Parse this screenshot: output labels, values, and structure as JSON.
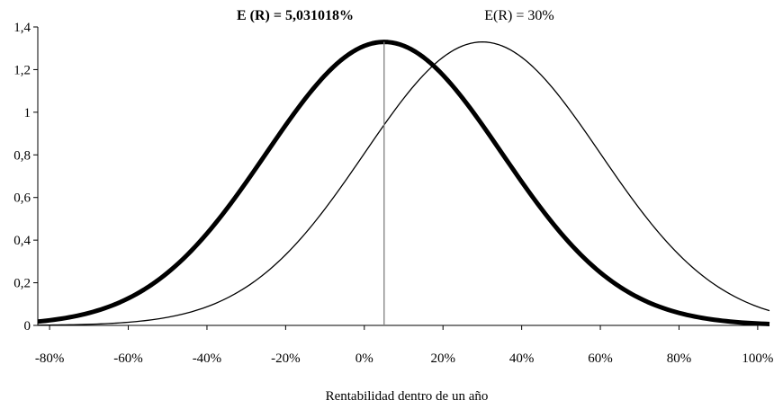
{
  "chart_data": {
    "type": "line",
    "xlabel": "Rentabilidad dentro de un año",
    "ylabel": "",
    "xlim": [
      -83,
      103
    ],
    "ylim": [
      0,
      1.4
    ],
    "grid": false,
    "x_ticks": [
      {
        "value": -80,
        "label": "-80%"
      },
      {
        "value": -60,
        "label": "-60%"
      },
      {
        "value": -40,
        "label": "-40%"
      },
      {
        "value": -20,
        "label": "-20%"
      },
      {
        "value": 0,
        "label": "0%"
      },
      {
        "value": 20,
        "label": "20%"
      },
      {
        "value": 40,
        "label": "40%"
      },
      {
        "value": 60,
        "label": "60%"
      },
      {
        "value": 80,
        "label": "80%"
      },
      {
        "value": 100,
        "label": "100%"
      }
    ],
    "y_ticks": [
      {
        "value": 0,
        "label": "0"
      },
      {
        "value": 0.2,
        "label": "0,2"
      },
      {
        "value": 0.4,
        "label": "0,4"
      },
      {
        "value": 0.6,
        "label": "0,6"
      },
      {
        "value": 0.8,
        "label": "0,8"
      },
      {
        "value": 1.0,
        "label": "1"
      },
      {
        "value": 1.2,
        "label": "1,2"
      },
      {
        "value": 1.4,
        "label": "1,4"
      }
    ],
    "series": [
      {
        "mean": 5.031018,
        "std": 30,
        "x_range": [
          -83,
          103
        ],
        "color": "#000000",
        "thick": true,
        "values_at": {
          "-80": 0.0266,
          "-60": 0.1346,
          "-40": 0.4222,
          "-20": 0.9616,
          "0": 1.3131,
          "20": 1.1683,
          "40": 0.6206,
          "60": 0.2485,
          "80": 0.0598,
          "100": 0.0087
        }
      },
      {
        "mean": 30,
        "std": 30,
        "x_range": [
          -83,
          103
        ],
        "color": "#000000",
        "thick": false,
        "values_at": {
          "-80": 0.0017,
          "-60": 0.0147,
          "-40": 0.0731,
          "-20": 0.2633,
          "0": 0.8067,
          "20": 1.2603,
          "40": 1.2603,
          "60": 0.8067,
          "80": 0.329,
          "100": 0.0887
        }
      }
    ],
    "mean_line": {
      "x": 5.031018
    },
    "annotations": [
      {
        "id": "thick",
        "text": "E (R) = 5,031018%",
        "bold": true
      },
      {
        "id": "thin",
        "text": "E(R) = 30%",
        "bold": false
      }
    ]
  }
}
